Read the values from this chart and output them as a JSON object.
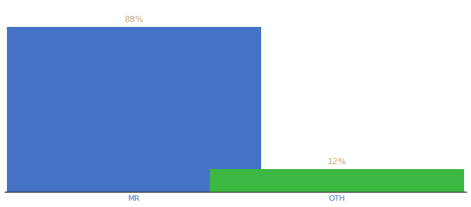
{
  "categories": [
    "MR",
    "OTH"
  ],
  "values": [
    88,
    12
  ],
  "bar_colors": [
    "#4472c4",
    "#3cb843"
  ],
  "label_color": "#c8a882",
  "label_fontsize": 9,
  "xlabel_fontsize": 8,
  "xlabel_color": "#4472c4",
  "background_color": "#ffffff",
  "ylim": [
    0,
    100
  ],
  "bar_width": 0.55,
  "x_positions": [
    0.28,
    0.72
  ]
}
